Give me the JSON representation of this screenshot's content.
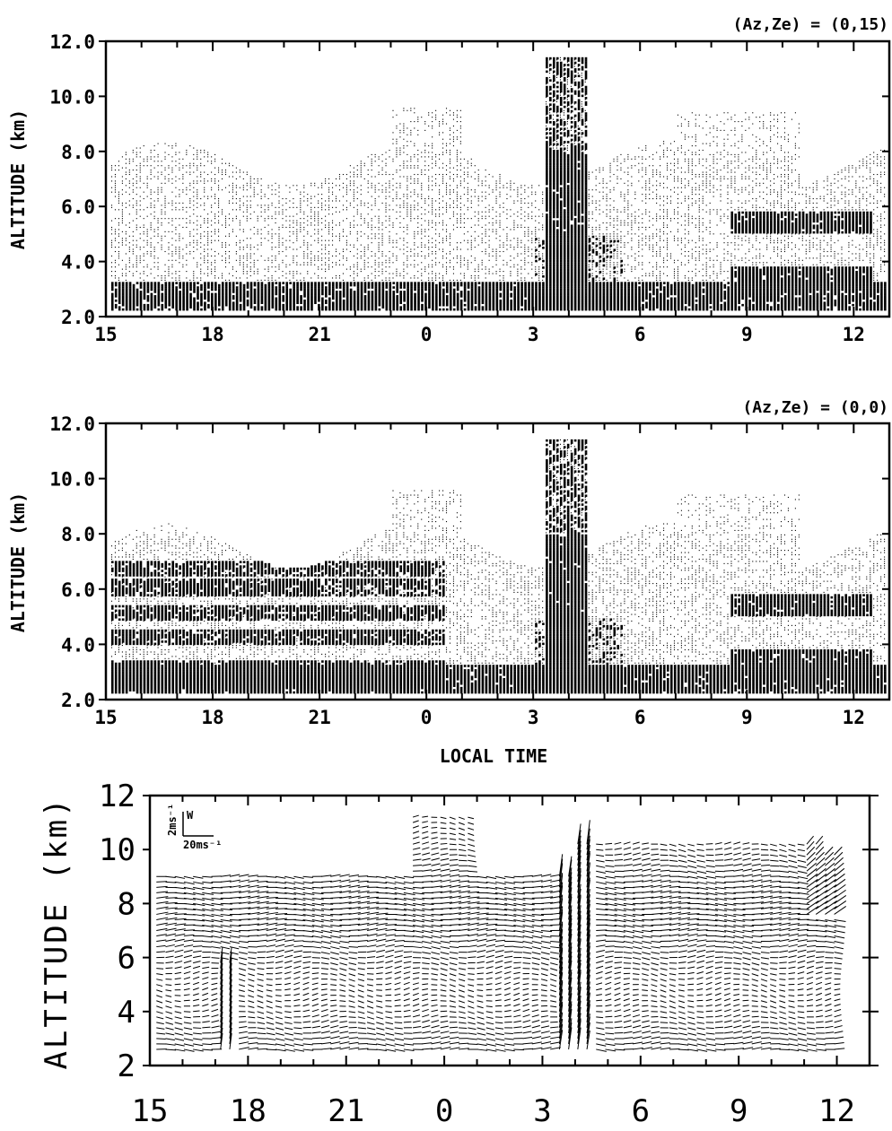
{
  "chart_data": [
    {
      "type": "heatmap",
      "annotation": "(Az,Ze) = (0,15)",
      "ylabel": "ALTITUDE (km)",
      "xlabel": "",
      "x_ticks": [
        "15",
        "18",
        "21",
        "0",
        "3",
        "6",
        "9",
        "12"
      ],
      "y_ticks": [
        "2.0",
        "4.0",
        "6.0",
        "8.0",
        "10.0",
        "12.0"
      ],
      "xlim_hours_from_15LT": [
        0,
        22
      ],
      "ylim": [
        2.0,
        12.0
      ],
      "grid": false,
      "data_description": "echo intensity (dot density); heavy echoes below 4 km, strong convective tower near 03-04 LT up to ~11.5 km, layered echoes 09-12 LT between 3 and 6 km"
    },
    {
      "type": "heatmap",
      "annotation": "(Az,Ze) = (0,0)",
      "ylabel": "ALTITUDE (km)",
      "xlabel": "LOCAL TIME",
      "x_ticks": [
        "15",
        "18",
        "21",
        "0",
        "3",
        "6",
        "9",
        "12"
      ],
      "y_ticks": [
        "2.0",
        "4.0",
        "6.0",
        "8.0",
        "10.0",
        "12.0"
      ],
      "xlim_hours_from_15LT": [
        0,
        22
      ],
      "ylim": [
        2.0,
        12.0
      ],
      "grid": false,
      "data_description": "vertical beam echo intensity; dense layers 2.5-7 km from 15 LT to 0 LT, convective tower near 03-04 LT to ~11.5 km, layered echoes 09-12 LT"
    },
    {
      "type": "vector field",
      "ylabel": "ALTITUDE (km)",
      "xlabel": "",
      "x_ticks": [
        "15",
        "18",
        "21",
        "0",
        "3",
        "6",
        "9",
        "12"
      ],
      "y_ticks": [
        "2",
        "4",
        "6",
        "8",
        "10",
        "12"
      ],
      "xlim_hours_from_15LT": [
        0,
        22
      ],
      "ylim": [
        2,
        12
      ],
      "grid": false,
      "legend": {
        "vertical_scale": "2ms⁻¹",
        "vertical_marker": "W",
        "horizontal_scale": "20ms⁻¹"
      },
      "data_description": "wind vectors (horizontal component along x, vertical component W along y); strong updraft near 03-04 LT and near 17 LT"
    }
  ]
}
